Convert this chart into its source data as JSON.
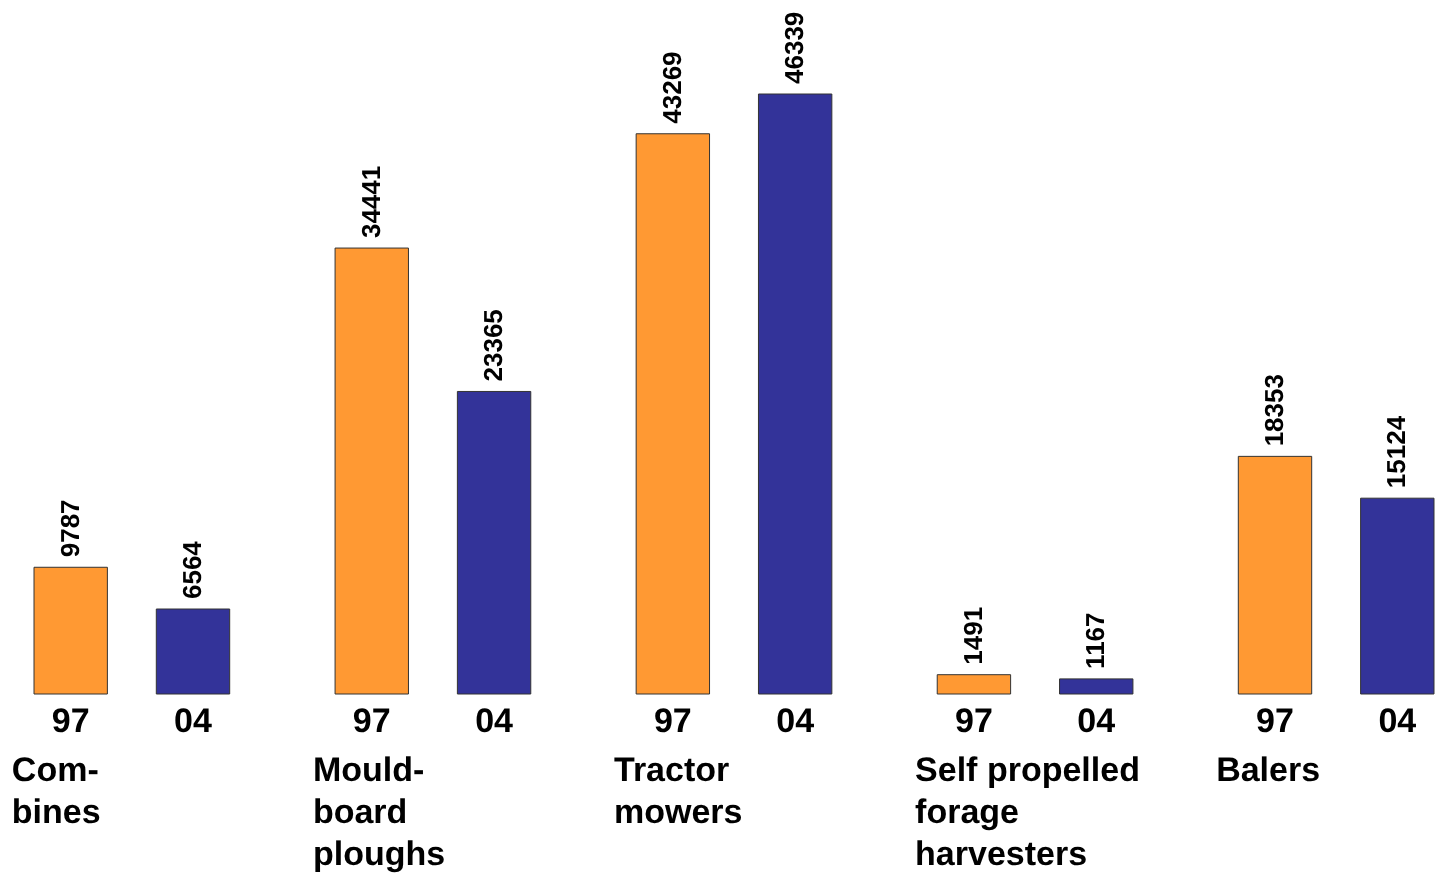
{
  "chart_data": {
    "type": "bar",
    "categories": [
      "Com-\nbines",
      "Mould-\nboard\nploughs",
      "Tractor\nmowers",
      "Self propelled\nforage\nharvesters",
      "Balers"
    ],
    "series": [
      {
        "name": "97",
        "color": "#ff9933",
        "values": [
          9787,
          34441,
          43269,
          1491,
          18353
        ]
      },
      {
        "name": "04",
        "color": "#333399",
        "values": [
          6564,
          23365,
          46339,
          1167,
          15124
        ]
      }
    ],
    "data_labels": true,
    "legend": false,
    "grid": false
  }
}
